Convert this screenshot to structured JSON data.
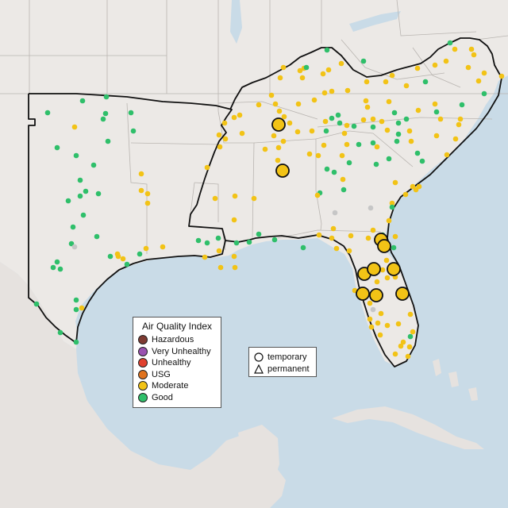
{
  "colors": {
    "Hazardous": "#7e3b32",
    "Very Unhealthy": "#9a52b0",
    "Unhealthy": "#e0412f",
    "USG": "#e0731f",
    "Moderate": "#f2c316",
    "Good": "#2fbf6a",
    "Unknown": "#c6c6c6",
    "water": "#c9dbe7",
    "land": "#ece9e6",
    "stateline": "#b9b5b1",
    "regionline": "#111111"
  },
  "legend": {
    "title": "Air Quality Index",
    "items": [
      {
        "label": "Hazardous",
        "color": "#7e3b32"
      },
      {
        "label": "Very Unhealthy",
        "color": "#9a52b0"
      },
      {
        "label": "Unhealthy",
        "color": "#e0412f"
      },
      {
        "label": "USG",
        "color": "#e0731f"
      },
      {
        "label": "Moderate",
        "color": "#f2c316"
      },
      {
        "label": "Good",
        "color": "#2fbf6a"
      }
    ]
  },
  "monitor_types": {
    "temporary": "temporary",
    "permanent": "permanent"
  }
}
